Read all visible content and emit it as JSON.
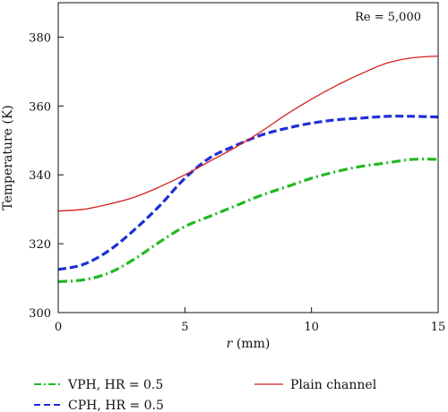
{
  "chart_data": {
    "type": "line",
    "xlabel_var": "r",
    "xlabel_unit": " (mm)",
    "ylabel": "Temperature (K)",
    "annotation": "Re = 5,000",
    "xlim": [
      0,
      15
    ],
    "ylim": [
      300,
      390
    ],
    "xticks": [
      0,
      5,
      10,
      15
    ],
    "yticks": [
      300,
      320,
      340,
      360,
      380
    ],
    "series": [
      {
        "name": "VPH, HR = 0.5",
        "color": "#22b822",
        "style": "dashdot",
        "x": [
          0,
          1,
          2,
          3,
          4,
          5,
          6,
          7,
          8,
          9,
          10,
          11,
          12,
          13,
          14,
          15
        ],
        "y": [
          309,
          309.5,
          311.5,
          315.5,
          320.5,
          325,
          328,
          331,
          334,
          336.5,
          339,
          341,
          342.5,
          343.5,
          344.5,
          344.5
        ]
      },
      {
        "name": "CPH, HR = 0.5",
        "color": "#1f2fd6",
        "style": "dashed",
        "x": [
          0,
          1,
          2,
          3,
          4,
          5,
          6,
          7,
          8,
          9,
          10,
          11,
          12,
          13,
          14,
          15
        ],
        "y": [
          312.5,
          314,
          318,
          324,
          331,
          339,
          345,
          348.5,
          351.5,
          353.5,
          355,
          356,
          356.5,
          357,
          357,
          356.8
        ]
      },
      {
        "name": "Plain channel",
        "color": "#d42020",
        "style": "solid",
        "x": [
          0,
          1,
          2,
          3,
          4,
          5,
          6,
          7,
          8,
          9,
          10,
          11,
          12,
          13,
          14,
          15
        ],
        "y": [
          329.5,
          330,
          331.5,
          333.5,
          336.5,
          340,
          344,
          348,
          352.5,
          357.5,
          362,
          366,
          369.5,
          372.5,
          374,
          374.5
        ]
      }
    ],
    "legend_placement": "bottom"
  }
}
